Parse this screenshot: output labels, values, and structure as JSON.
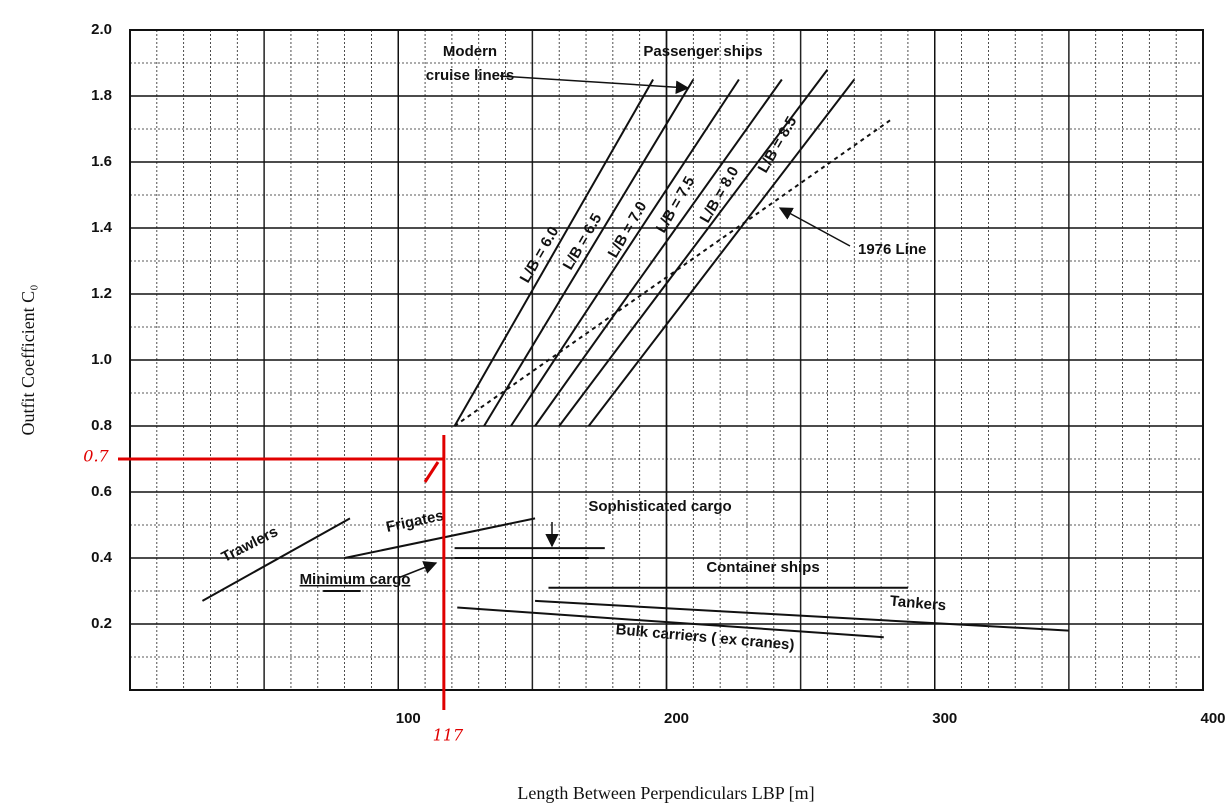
{
  "chart_data": {
    "type": "line",
    "x_label": "Length Between Perpendiculars LBP [m]",
    "y_label": "Outfit Coefficient C₀",
    "xlim": [
      0,
      400
    ],
    "xticks": [
      100,
      200,
      300,
      400
    ],
    "ylim": [
      0,
      2
    ],
    "yticks": [
      0.2,
      0.4,
      0.6,
      0.8,
      {
        "value": 1,
        "label": "1.0"
      },
      1.2,
      1.4,
      1.6,
      1.8,
      {
        "value": 2,
        "label": "2.0"
      }
    ],
    "grid": true,
    "annotations": [
      {
        "lines": [
          "Modern",
          "cruise liners"
        ]
      },
      {
        "lines": [
          "Passenger ships"
        ]
      }
    ],
    "series": [
      {
        "name": "L/B = 6.0",
        "color": "#111",
        "x": [
          121,
          195
        ],
        "values": [
          0.8,
          1.85
        ]
      },
      {
        "name": "L/B = 6.5",
        "color": "#111",
        "x": [
          132,
          210
        ],
        "values": [
          0.8,
          1.85
        ]
      },
      {
        "name": "L/B = 7.0",
        "color": "#111",
        "x": [
          142,
          227
        ],
        "values": [
          0.8,
          1.85
        ]
      },
      {
        "name": "L/B = 7.5",
        "color": "#111",
        "x": [
          151,
          243
        ],
        "values": [
          0.8,
          1.85
        ]
      },
      {
        "name": "L/B = 8.0",
        "color": "#111",
        "x": [
          160,
          260
        ],
        "values": [
          0.8,
          1.88
        ]
      },
      {
        "name": "L/B = 8.5",
        "color": "#111",
        "x": [
          171,
          270
        ],
        "values": [
          0.8,
          1.85
        ]
      },
      {
        "name": "1976 Line",
        "color": "#111",
        "dashed": true,
        "x": [
          121,
          284
        ],
        "values": [
          0.8,
          1.73
        ]
      },
      {
        "name": "Trawlers",
        "color": "#111",
        "x": [
          27,
          82
        ],
        "values": [
          0.27,
          0.52
        ]
      },
      {
        "name": "Frigates",
        "color": "#111",
        "x": [
          80,
          151
        ],
        "values": [
          0.4,
          0.52
        ]
      },
      {
        "name": "Minimum cargo",
        "color": "#111",
        "x": [
          72,
          86
        ],
        "values": [
          0.3,
          0.3
        ]
      },
      {
        "name": "Sophisticated cargo",
        "color": "#111",
        "x": [
          121,
          177
        ],
        "values": [
          0.43,
          0.43
        ]
      },
      {
        "color": "#111",
        "x": [
          121,
          171
        ],
        "values": [
          0.4,
          0.4
        ]
      },
      {
        "name": "Container ships",
        "color": "#111",
        "x": [
          156,
          290
        ],
        "values": [
          0.31,
          0.31
        ]
      },
      {
        "name": "Tankers",
        "color": "#111",
        "x": [
          151,
          350
        ],
        "values": [
          0.27,
          0.18
        ]
      },
      {
        "name": "Bulk carriers ( ex cranes)",
        "color": "#111",
        "x": [
          122,
          281
        ],
        "values": [
          0.25,
          0.16
        ]
      }
    ],
    "marker": {
      "x": 117,
      "y": 0.7,
      "x_label": "117",
      "y_label": "0.7",
      "color": "#e00000"
    }
  }
}
